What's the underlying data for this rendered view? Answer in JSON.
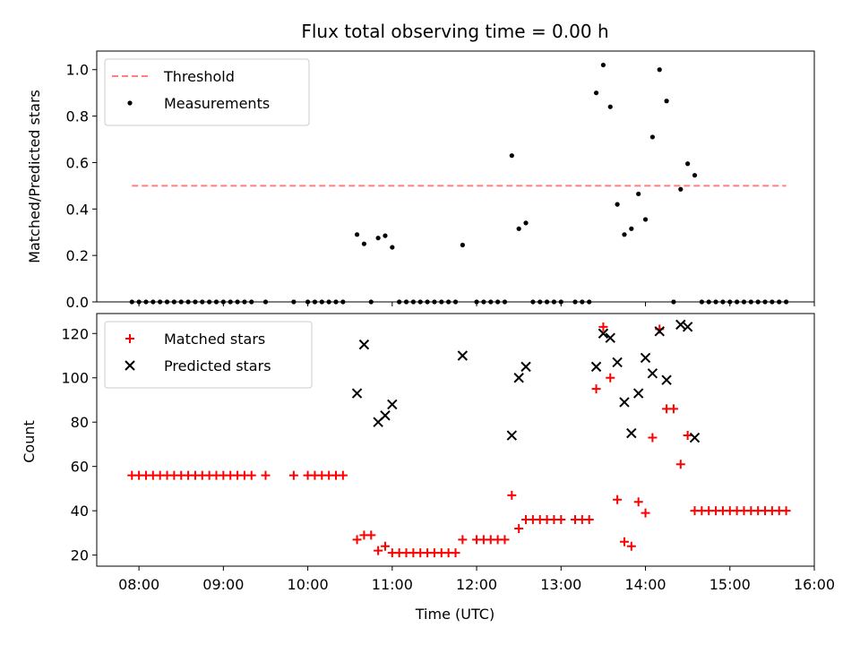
{
  "chart_data": [
    {
      "type": "scatter",
      "title": "Flux total observing time = 0.00 h",
      "xlabel": "",
      "ylabel": "Matched/Predicted stars",
      "ylim": [
        0,
        1.08
      ],
      "yticks": [
        0.0,
        0.2,
        0.4,
        0.6,
        0.8,
        1.0
      ],
      "ytick_labels": [
        "0.0",
        "0.2",
        "0.4",
        "0.6",
        "0.8",
        "1.0"
      ],
      "legend_position": "upper-left",
      "threshold": {
        "name": "Threshold",
        "value": 0.5,
        "x_start": "07:55",
        "x_end": "15:40",
        "color": "#ff7f7f"
      },
      "series": [
        {
          "name": "Measurements",
          "color": "#000000",
          "points": [
            [
              "07:55",
              0
            ],
            [
              "08:00",
              0
            ],
            [
              "08:05",
              0
            ],
            [
              "08:10",
              0
            ],
            [
              "08:15",
              0
            ],
            [
              "08:20",
              0
            ],
            [
              "08:25",
              0
            ],
            [
              "08:30",
              0
            ],
            [
              "08:35",
              0
            ],
            [
              "08:40",
              0
            ],
            [
              "08:45",
              0
            ],
            [
              "08:50",
              0
            ],
            [
              "08:55",
              0
            ],
            [
              "09:00",
              0
            ],
            [
              "09:05",
              0
            ],
            [
              "09:10",
              0
            ],
            [
              "09:15",
              0
            ],
            [
              "09:20",
              0
            ],
            [
              "09:30",
              0
            ],
            [
              "09:50",
              0
            ],
            [
              "10:00",
              0
            ],
            [
              "10:05",
              0
            ],
            [
              "10:10",
              0
            ],
            [
              "10:15",
              0
            ],
            [
              "10:20",
              0
            ],
            [
              "10:25",
              0
            ],
            [
              "10:35",
              0.29
            ],
            [
              "10:40",
              0.25
            ],
            [
              "10:45",
              0
            ],
            [
              "10:50",
              0.275
            ],
            [
              "10:55",
              0.285
            ],
            [
              "11:00",
              0.235
            ],
            [
              "11:05",
              0
            ],
            [
              "11:10",
              0
            ],
            [
              "11:15",
              0
            ],
            [
              "11:20",
              0
            ],
            [
              "11:25",
              0
            ],
            [
              "11:30",
              0
            ],
            [
              "11:35",
              0
            ],
            [
              "11:40",
              0
            ],
            [
              "11:45",
              0
            ],
            [
              "11:50",
              0.245
            ],
            [
              "12:00",
              0
            ],
            [
              "12:05",
              0
            ],
            [
              "12:10",
              0
            ],
            [
              "12:15",
              0
            ],
            [
              "12:20",
              0
            ],
            [
              "12:25",
              0.63
            ],
            [
              "12:30",
              0.315
            ],
            [
              "12:35",
              0.34
            ],
            [
              "12:40",
              0
            ],
            [
              "12:45",
              0
            ],
            [
              "12:50",
              0
            ],
            [
              "12:55",
              0
            ],
            [
              "13:00",
              0
            ],
            [
              "13:10",
              0
            ],
            [
              "13:15",
              0
            ],
            [
              "13:20",
              0
            ],
            [
              "13:25",
              0.9
            ],
            [
              "13:30",
              1.02
            ],
            [
              "13:35",
              0.84
            ],
            [
              "13:40",
              0.42
            ],
            [
              "13:45",
              0.29
            ],
            [
              "13:50",
              0.315
            ],
            [
              "13:55",
              0.465
            ],
            [
              "14:00",
              0.355
            ],
            [
              "14:05",
              0.71
            ],
            [
              "14:10",
              1.0
            ],
            [
              "14:15",
              0.865
            ],
            [
              "14:20",
              0
            ],
            [
              "14:25",
              0.485
            ],
            [
              "14:30",
              0.595
            ],
            [
              "14:35",
              0.545
            ],
            [
              "14:40",
              0
            ],
            [
              "14:45",
              0
            ],
            [
              "14:50",
              0
            ],
            [
              "14:55",
              0
            ],
            [
              "15:00",
              0
            ],
            [
              "15:05",
              0
            ],
            [
              "15:10",
              0
            ],
            [
              "15:15",
              0
            ],
            [
              "15:20",
              0
            ],
            [
              "15:25",
              0
            ],
            [
              "15:30",
              0
            ],
            [
              "15:35",
              0
            ],
            [
              "15:40",
              0
            ]
          ]
        }
      ]
    },
    {
      "type": "scatter",
      "title": "",
      "xlabel": "Time (UTC)",
      "ylabel": "Count",
      "ylim": [
        15,
        129
      ],
      "yticks": [
        20,
        40,
        60,
        80,
        100,
        120
      ],
      "ytick_labels": [
        "20",
        "40",
        "60",
        "80",
        "100",
        "120"
      ],
      "xticks": [
        "08:00",
        "09:00",
        "10:00",
        "11:00",
        "12:00",
        "13:00",
        "14:00",
        "15:00",
        "16:00"
      ],
      "xlim": [
        "07:30",
        "16:00"
      ],
      "legend_position": "upper-left",
      "series": [
        {
          "name": "Matched stars",
          "marker": "plus",
          "color": "#ff0000",
          "points": [
            [
              "07:55",
              56
            ],
            [
              "08:00",
              56
            ],
            [
              "08:05",
              56
            ],
            [
              "08:10",
              56
            ],
            [
              "08:15",
              56
            ],
            [
              "08:20",
              56
            ],
            [
              "08:25",
              56
            ],
            [
              "08:30",
              56
            ],
            [
              "08:35",
              56
            ],
            [
              "08:40",
              56
            ],
            [
              "08:45",
              56
            ],
            [
              "08:50",
              56
            ],
            [
              "08:55",
              56
            ],
            [
              "09:00",
              56
            ],
            [
              "09:05",
              56
            ],
            [
              "09:10",
              56
            ],
            [
              "09:15",
              56
            ],
            [
              "09:20",
              56
            ],
            [
              "09:30",
              56
            ],
            [
              "09:50",
              56
            ],
            [
              "10:00",
              56
            ],
            [
              "10:05",
              56
            ],
            [
              "10:10",
              56
            ],
            [
              "10:15",
              56
            ],
            [
              "10:20",
              56
            ],
            [
              "10:25",
              56
            ],
            [
              "10:35",
              27
            ],
            [
              "10:40",
              29
            ],
            [
              "10:45",
              29
            ],
            [
              "10:50",
              22
            ],
            [
              "10:55",
              24
            ],
            [
              "11:00",
              21
            ],
            [
              "11:05",
              21
            ],
            [
              "11:10",
              21
            ],
            [
              "11:15",
              21
            ],
            [
              "11:20",
              21
            ],
            [
              "11:25",
              21
            ],
            [
              "11:30",
              21
            ],
            [
              "11:35",
              21
            ],
            [
              "11:40",
              21
            ],
            [
              "11:45",
              21
            ],
            [
              "11:50",
              27
            ],
            [
              "12:00",
              27
            ],
            [
              "12:05",
              27
            ],
            [
              "12:10",
              27
            ],
            [
              "12:15",
              27
            ],
            [
              "12:20",
              27
            ],
            [
              "12:25",
              47
            ],
            [
              "12:30",
              32
            ],
            [
              "12:35",
              36
            ],
            [
              "12:40",
              36
            ],
            [
              "12:45",
              36
            ],
            [
              "12:50",
              36
            ],
            [
              "12:55",
              36
            ],
            [
              "13:00",
              36
            ],
            [
              "13:10",
              36
            ],
            [
              "13:15",
              36
            ],
            [
              "13:20",
              36
            ],
            [
              "13:25",
              95
            ],
            [
              "13:30",
              123
            ],
            [
              "13:35",
              100
            ],
            [
              "13:40",
              45
            ],
            [
              "13:45",
              26
            ],
            [
              "13:50",
              24
            ],
            [
              "13:55",
              44
            ],
            [
              "14:00",
              39
            ],
            [
              "14:05",
              73
            ],
            [
              "14:10",
              122
            ],
            [
              "14:15",
              86
            ],
            [
              "14:20",
              86
            ],
            [
              "14:25",
              61
            ],
            [
              "14:30",
              74
            ],
            [
              "14:35",
              40
            ],
            [
              "14:40",
              40
            ],
            [
              "14:45",
              40
            ],
            [
              "14:50",
              40
            ],
            [
              "14:55",
              40
            ],
            [
              "15:00",
              40
            ],
            [
              "15:05",
              40
            ],
            [
              "15:10",
              40
            ],
            [
              "15:15",
              40
            ],
            [
              "15:20",
              40
            ],
            [
              "15:25",
              40
            ],
            [
              "15:30",
              40
            ],
            [
              "15:35",
              40
            ],
            [
              "15:40",
              40
            ]
          ]
        },
        {
          "name": "Predicted stars",
          "marker": "x",
          "color": "#000000",
          "points": [
            [
              "10:35",
              93
            ],
            [
              "10:40",
              115
            ],
            [
              "10:50",
              80
            ],
            [
              "10:55",
              83
            ],
            [
              "11:00",
              88
            ],
            [
              "11:50",
              110
            ],
            [
              "12:25",
              74
            ],
            [
              "12:30",
              100
            ],
            [
              "12:35",
              105
            ],
            [
              "13:25",
              105
            ],
            [
              "13:30",
              120
            ],
            [
              "13:35",
              118
            ],
            [
              "13:40",
              107
            ],
            [
              "13:45",
              89
            ],
            [
              "13:50",
              75
            ],
            [
              "13:55",
              93
            ],
            [
              "14:00",
              109
            ],
            [
              "14:05",
              102
            ],
            [
              "14:10",
              121
            ],
            [
              "14:15",
              99
            ],
            [
              "14:25",
              124
            ],
            [
              "14:30",
              123
            ],
            [
              "14:35",
              73
            ]
          ]
        }
      ]
    }
  ]
}
